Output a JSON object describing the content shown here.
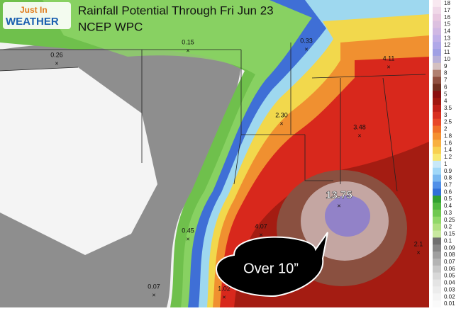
{
  "logo": {
    "line1": "Just In",
    "line2": "WEATHER"
  },
  "header": {
    "title": "Rainfall Potential Through Fri Jun 23",
    "subtitle": "NCEP WPC"
  },
  "map": {
    "points": [
      {
        "label": "0.26"
      },
      {
        "label": "0.15"
      },
      {
        "label": "0.33"
      },
      {
        "label": "4.11"
      },
      {
        "label": "2.30"
      },
      {
        "label": "3.48"
      },
      {
        "label": "13.75"
      },
      {
        "label": "4.07"
      },
      {
        "label": "0.45"
      },
      {
        "label": "2.1"
      },
      {
        "label": "1.02"
      },
      {
        "label": "0.07"
      }
    ]
  },
  "callout": "Over 10”",
  "colorbar": {
    "labels": [
      "18",
      "17",
      "16",
      "15",
      "14",
      "13",
      "12",
      "11",
      "10",
      "9",
      "8",
      "7",
      "6",
      "5",
      "4",
      "3.5",
      "3",
      "2.5",
      "2",
      "1.8",
      "1.6",
      "1.4",
      "1.2",
      "1",
      "0.9",
      "0.8",
      "0.7",
      "0.6",
      "0.5",
      "0.4",
      "0.3",
      "0.25",
      "0.2",
      "0.15",
      "0.1",
      "0.09",
      "0.08",
      "0.07",
      "0.06",
      "0.05",
      "0.04",
      "0.03",
      "0.02",
      "0.01"
    ]
  }
}
